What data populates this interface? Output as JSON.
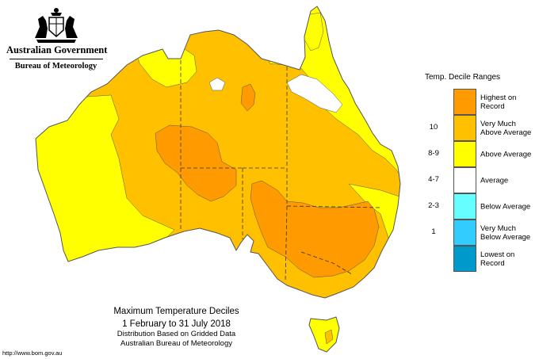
{
  "agency": {
    "government": "Australian Government",
    "bureau": "Bureau of Meteorology",
    "crest_icon": "commonwealth-coat-of-arms-icon"
  },
  "legend": {
    "title": "Temp. Decile Ranges",
    "items": [
      {
        "code": "",
        "label_lines": [
          "Highest on",
          "Record"
        ],
        "color": "#ff9a00"
      },
      {
        "code": "10",
        "label_lines": [
          "Very Much",
          "Above Average"
        ],
        "color": "#ffc000"
      },
      {
        "code": "8-9",
        "label_lines": [
          "Above Average"
        ],
        "color": "#ffff00"
      },
      {
        "code": "4-7",
        "label_lines": [
          "Average"
        ],
        "color": "#ffffff"
      },
      {
        "code": "2-3",
        "label_lines": [
          "Below Average"
        ],
        "color": "#66ffff"
      },
      {
        "code": "1",
        "label_lines": [
          "Very Much",
          "Below Average"
        ],
        "color": "#33ccff"
      },
      {
        "code": "",
        "label_lines": [
          "Lowest on",
          "Record"
        ],
        "color": "#0099cc"
      }
    ]
  },
  "caption": {
    "title": "Maximum Temperature Deciles",
    "period": "1 February to 31 July 2018",
    "line1": "Distribution Based on Gridded Data",
    "line2": "Australian Bureau of Meteorology"
  },
  "source_url": "http://www.bom.gov.au",
  "map": {
    "region": "Australia",
    "boundaries": "state borders dashed",
    "colors": {
      "land_base": "#ffc000",
      "above_average": "#ffff00",
      "highest_on_record": "#ff9a00",
      "average": "#ffffff",
      "outline": "#555555"
    }
  }
}
